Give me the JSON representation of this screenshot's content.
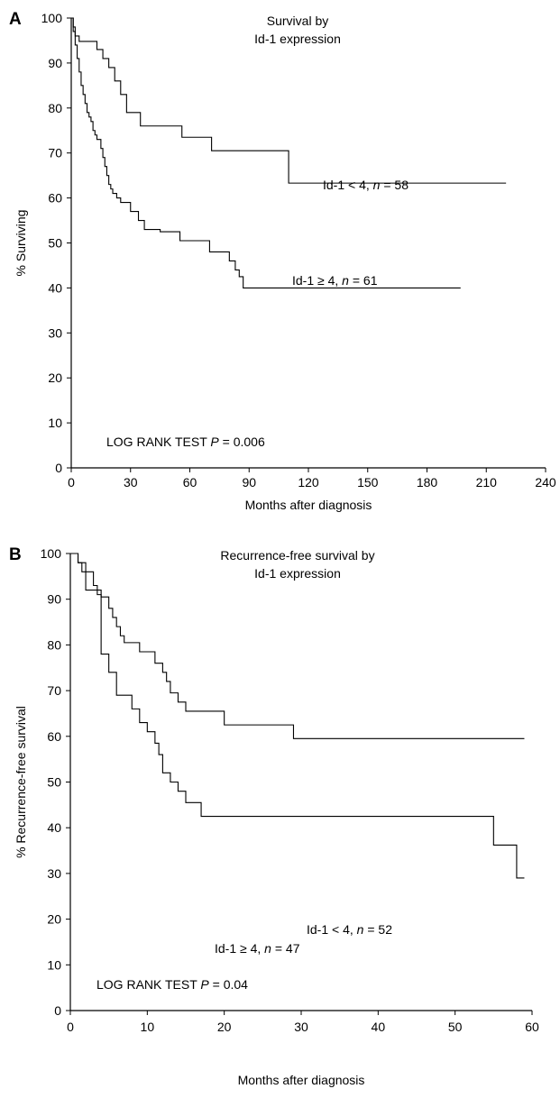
{
  "chart_data": [
    {
      "type": "line",
      "step": true,
      "panel_label": "A",
      "title": "Survival by",
      "subtitle": "Id-1 expression",
      "xlabel": "Months after diagnosis",
      "ylabel": "% Surviving",
      "xlim": [
        0,
        240
      ],
      "ylim": [
        0,
        100
      ],
      "xticks": [
        0,
        30,
        60,
        90,
        120,
        150,
        180,
        210,
        240
      ],
      "yticks": [
        0,
        10,
        20,
        30,
        40,
        50,
        60,
        70,
        80,
        90,
        100
      ],
      "annotation": {
        "prefix": "LOG RANK TEST ",
        "stat": "P",
        "suffix": " = 0.006"
      },
      "series": [
        {
          "label_main": "Id-1 < 4, ",
          "label_n": "n",
          "label_count": " = 58",
          "x": [
            0,
            1,
            2,
            4,
            7,
            10,
            13,
            16,
            19,
            22,
            25,
            28,
            35,
            56,
            71,
            110,
            220
          ],
          "y": [
            100,
            98,
            96,
            94.8,
            94.8,
            94.8,
            93,
            91,
            89,
            86,
            83,
            79,
            76,
            73.5,
            70.5,
            63.3,
            63.3
          ]
        },
        {
          "label_main": "Id-1 ≥ 4, ",
          "label_n": "n",
          "label_count": " = 61",
          "x": [
            0,
            1,
            2,
            3,
            4,
            5,
            6,
            7,
            8,
            9,
            10,
            11,
            12,
            13,
            15,
            16,
            17,
            18,
            19,
            20,
            21,
            23,
            25,
            30,
            34,
            37,
            45,
            55,
            70,
            80,
            83,
            85,
            87,
            197
          ],
          "y": [
            100,
            97,
            94,
            91,
            88,
            85,
            83,
            81,
            79,
            78,
            77,
            75,
            74,
            73,
            71,
            69,
            67,
            65,
            63,
            62,
            61,
            60,
            59,
            57,
            55,
            53,
            52.5,
            50.5,
            48,
            46,
            44,
            42.5,
            40,
            40
          ]
        }
      ]
    },
    {
      "type": "line",
      "step": true,
      "panel_label": "B",
      "title": "Recurrence-free survival by",
      "subtitle": "Id-1 expression",
      "xlabel": "Months after diagnosis",
      "ylabel": "% Recurrence-free survival",
      "xlim": [
        0,
        60
      ],
      "ylim": [
        0,
        100
      ],
      "xticks": [
        0,
        10,
        20,
        30,
        40,
        50,
        60
      ],
      "yticks": [
        0,
        10,
        20,
        30,
        40,
        50,
        60,
        70,
        80,
        90,
        100
      ],
      "annotation": {
        "prefix": "LOG RANK TEST ",
        "stat": "P",
        "suffix": " = 0.04"
      },
      "series": [
        {
          "label_main": "Id-1 < 4, ",
          "label_n": "n",
          "label_count": " = 52",
          "x": [
            0,
            1,
            1.5,
            2,
            4,
            5,
            5.5,
            6,
            6.5,
            7,
            9,
            11,
            12,
            12.5,
            13,
            14,
            15,
            16,
            20,
            29,
            59
          ],
          "y": [
            100,
            98,
            96,
            92,
            90.5,
            88,
            86,
            84,
            82,
            80.5,
            78.5,
            76,
            74,
            72,
            69.5,
            67.5,
            65.5,
            65.5,
            62.5,
            59.5,
            59.5
          ]
        },
        {
          "label_main": "Id-1 ≥ 4, ",
          "label_n": "n",
          "label_count": " = 47",
          "x": [
            0,
            1,
            2,
            3,
            3.5,
            4,
            5,
            6,
            8,
            9,
            10,
            11,
            11.5,
            12,
            13,
            14,
            15,
            17,
            55,
            58,
            59
          ],
          "y": [
            100,
            98,
            96,
            93,
            91,
            78,
            74,
            69,
            66,
            63,
            61,
            58.5,
            56,
            52,
            50,
            48,
            45.5,
            42.5,
            36.2,
            29,
            29
          ]
        }
      ]
    }
  ]
}
